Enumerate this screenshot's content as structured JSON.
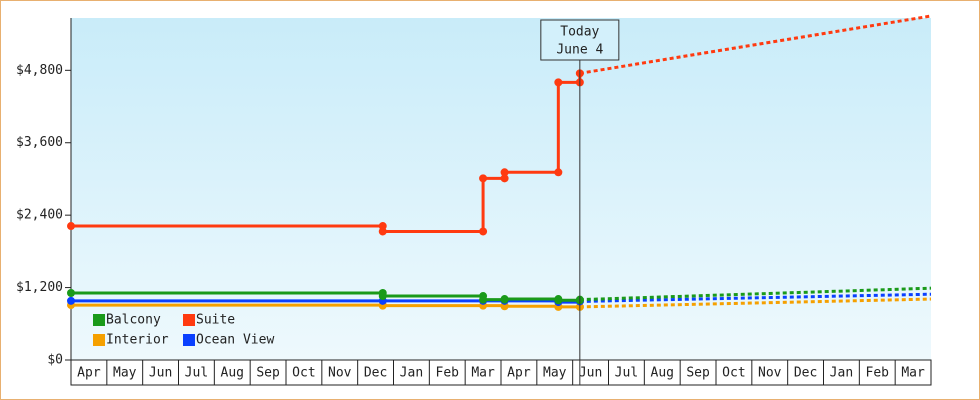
{
  "chart_data": {
    "type": "line",
    "categories": [
      "Apr",
      "May",
      "Jun",
      "Jul",
      "Aug",
      "Sep",
      "Oct",
      "Nov",
      "Dec",
      "Jan",
      "Feb",
      "Mar",
      "Apr",
      "May",
      "Jun",
      "Jul",
      "Aug",
      "Sep",
      "Oct",
      "Nov",
      "Dec",
      "Jan",
      "Feb",
      "Mar"
    ],
    "xlim": [
      0,
      24
    ],
    "ylim": [
      0,
      5700
    ],
    "yticks": [
      {
        "value": 0,
        "label": "$0"
      },
      {
        "value": 1200,
        "label": "$1,200"
      },
      {
        "value": 2400,
        "label": "$2,400"
      },
      {
        "value": 3600,
        "label": "$3,600"
      },
      {
        "value": 4800,
        "label": "$4,800"
      }
    ],
    "step": true,
    "series": [
      {
        "name": "Interior",
        "color": "#f5a000",
        "x": [
          0,
          8.7,
          8.7,
          11.5,
          12.1,
          12.1,
          13.6,
          13.6,
          14.2
        ],
        "values": [
          910,
          910,
          900,
          900,
          900,
          890,
          890,
          880,
          880
        ],
        "forecast": {
          "x": [
            14.2,
            24
          ],
          "values": [
            880,
            1010
          ]
        }
      },
      {
        "name": "Ocean View",
        "color": "#0a40ff",
        "x": [
          0,
          8.7,
          11.5,
          12.1,
          13.6,
          13.6,
          14.2
        ],
        "values": [
          980,
          980,
          980,
          980,
          980,
          960,
          970
        ],
        "forecast": {
          "x": [
            14.2,
            24
          ],
          "values": [
            970,
            1090
          ]
        }
      },
      {
        "name": "Balcony",
        "color": "#1a9a1a",
        "x": [
          0,
          8.7,
          8.7,
          11.5,
          11.5,
          12.1,
          12.1,
          13.6,
          13.6,
          14.2,
          14.2
        ],
        "values": [
          1110,
          1110,
          1060,
          1060,
          1000,
          1000,
          1010,
          1010,
          990,
          990,
          1000
        ],
        "forecast": {
          "x": [
            14.2,
            24
          ],
          "values": [
            1000,
            1190
          ]
        }
      },
      {
        "name": "Suite",
        "color": "#ff3a10",
        "x": [
          0,
          8.7,
          8.7,
          11.5,
          11.5,
          12.1,
          12.1,
          13.6,
          13.6,
          14.2,
          14.2
        ],
        "values": [
          2220,
          2220,
          2130,
          2130,
          3010,
          3010,
          3110,
          3110,
          4600,
          4600,
          4750
        ],
        "forecast": {
          "x": [
            14.2,
            24
          ],
          "values": [
            4750,
            5700
          ]
        }
      }
    ],
    "legend_order": [
      2,
      3,
      0,
      1
    ],
    "annotations": [
      {
        "x": 14.2,
        "lines": [
          "Today",
          "June 4"
        ]
      }
    ]
  }
}
